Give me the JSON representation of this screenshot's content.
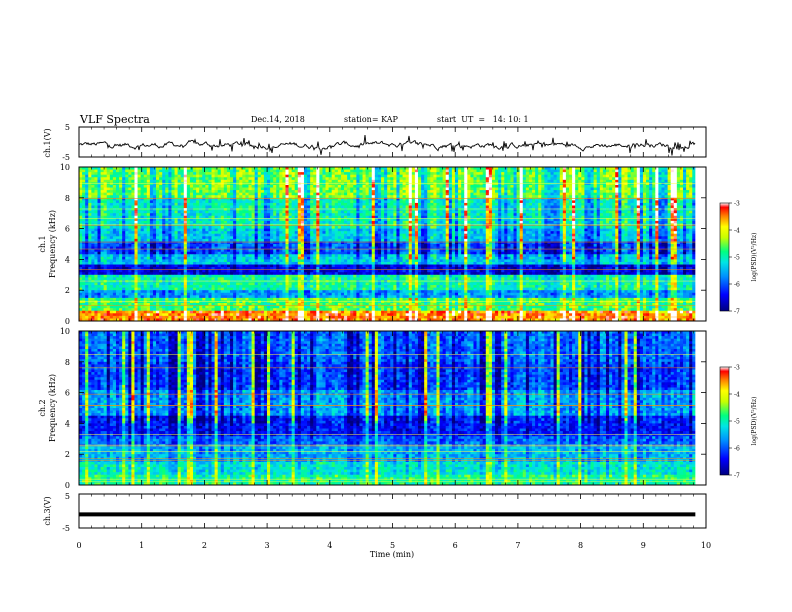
{
  "header": {
    "title": "VLF Spectra",
    "date": "Dec.14, 2018",
    "station": "station= KAP",
    "start": "start  UT  =   14: 10: 1"
  },
  "chart_data": [
    {
      "type": "line",
      "name": "ch1-waveform",
      "ylabel": "ch.1(V)",
      "ylim": [
        -5,
        5
      ],
      "yticks": [
        "5",
        "-5"
      ],
      "xlim": [
        0,
        10
      ],
      "x_extent": [
        0,
        9.83
      ],
      "values_note": "dense noisy waveform around about -1 V"
    },
    {
      "type": "heatmap",
      "name": "ch1-spectrogram",
      "ylabel": "ch.1",
      "ylabel2": "Frequency (kHz)",
      "ylim": [
        0,
        10
      ],
      "yticks": [
        "0",
        "2",
        "4",
        "6",
        "8",
        "10"
      ],
      "xlim": [
        0,
        10
      ],
      "x_extent": [
        0,
        9.83
      ],
      "colorbar": {
        "label": "log(PSD)(V²/Hz)",
        "range": [
          -7,
          -3
        ],
        "ticks": [
          "-3",
          "-4",
          "-5",
          "-6",
          "-7"
        ]
      },
      "bands_kHz": [
        {
          "from": 0,
          "to": 0.6,
          "level": -3.4
        },
        {
          "from": 0.6,
          "to": 1.5,
          "level": -4.6
        },
        {
          "from": 1.5,
          "to": 2.0,
          "level": -5.6
        },
        {
          "from": 2.0,
          "to": 3.0,
          "level": -4.9
        },
        {
          "from": 3.0,
          "to": 3.6,
          "level": -6.5
        },
        {
          "from": 3.6,
          "to": 4.3,
          "level": -5.3
        },
        {
          "from": 4.3,
          "to": 5.2,
          "level": -6.0
        },
        {
          "from": 5.2,
          "to": 6.0,
          "level": -5.3
        },
        {
          "from": 6.0,
          "to": 8.0,
          "level": -5.0
        },
        {
          "from": 8.0,
          "to": 10.0,
          "level": -4.5
        }
      ]
    },
    {
      "type": "heatmap",
      "name": "ch2-spectrogram",
      "ylabel": "ch.2",
      "ylabel2": "Frequency (kHz)",
      "ylim": [
        0,
        10
      ],
      "yticks": [
        "0",
        "2",
        "4",
        "6",
        "8",
        "10"
      ],
      "xlim": [
        0,
        10
      ],
      "x_extent": [
        0,
        9.83
      ],
      "colorbar": {
        "label": "log(PSD)(V²/Hz)",
        "range": [
          -7,
          -3
        ],
        "ticks": [
          "-3",
          "-4",
          "-5",
          "-6",
          "-7"
        ]
      },
      "bands_kHz": [
        {
          "from": 0,
          "to": 0.6,
          "level": -4.8
        },
        {
          "from": 0.6,
          "to": 1.5,
          "level": -5.1
        },
        {
          "from": 1.5,
          "to": 2.5,
          "level": -5.5
        },
        {
          "from": 2.5,
          "to": 3.2,
          "level": -5.9
        },
        {
          "from": 3.2,
          "to": 4.5,
          "level": -6.3
        },
        {
          "from": 4.5,
          "to": 6.2,
          "level": -5.6
        },
        {
          "from": 6.2,
          "to": 8.0,
          "level": -6.1
        },
        {
          "from": 8.0,
          "to": 10.0,
          "level": -5.9
        }
      ]
    },
    {
      "type": "line",
      "name": "ch3-waveform",
      "ylabel": "ch.3(V)",
      "ylim": [
        -5,
        5
      ],
      "yticks": [
        "5",
        "-5"
      ],
      "xlim": [
        0,
        10
      ],
      "x_extent": [
        0,
        9.83
      ],
      "values": [
        -1,
        -1
      ]
    }
  ],
  "xaxis": {
    "label": "Time (min)",
    "ticks": [
      "0",
      "1",
      "2",
      "3",
      "4",
      "5",
      "6",
      "7",
      "8",
      "9",
      "10"
    ]
  },
  "colormap": [
    "#00007f",
    "#0000ff",
    "#0080ff",
    "#00e5e5",
    "#00ff80",
    "#bfff00",
    "#ffff00",
    "#ff8000",
    "#ff0000",
    "#ffffff"
  ]
}
